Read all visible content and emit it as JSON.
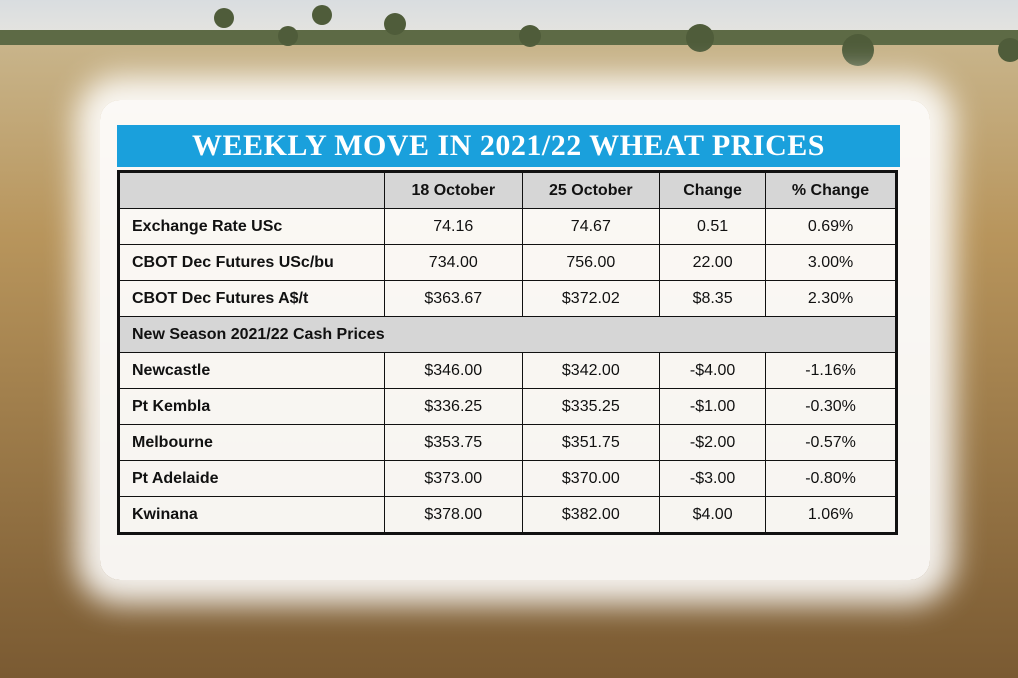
{
  "header": {
    "title": "WEEKLY MOVE IN 2021/22 WHEAT PRICES"
  },
  "table": {
    "columns": [
      "18 October",
      "25 October",
      "Change",
      "% Change"
    ],
    "rows_top": [
      [
        "Exchange Rate USc",
        "74.16",
        "74.67",
        "0.51",
        "0.69%"
      ],
      [
        "CBOT Dec Futures USc/bu",
        "734.00",
        "756.00",
        "22.00",
        "3.00%"
      ],
      [
        "CBOT Dec Futures A$/t",
        "$363.67",
        "$372.02",
        "$8.35",
        "2.30%"
      ]
    ],
    "section": "New Season 2021/22 Cash Prices",
    "rows_bottom": [
      [
        "Newcastle",
        "$346.00",
        "$342.00",
        "-$4.00",
        "-1.16%"
      ],
      [
        "Pt Kembla",
        "$336.25",
        "$335.25",
        "-$1.00",
        "-0.30%"
      ],
      [
        "Melbourne",
        "$353.75",
        "$351.75",
        "-$2.00",
        "-0.57%"
      ],
      [
        "Pt Adelaide",
        "$373.00",
        "$370.00",
        "-$3.00",
        "-0.80%"
      ],
      [
        "Kwinana",
        "$378.00",
        "$382.00",
        "$4.00",
        "1.06%"
      ]
    ]
  }
}
